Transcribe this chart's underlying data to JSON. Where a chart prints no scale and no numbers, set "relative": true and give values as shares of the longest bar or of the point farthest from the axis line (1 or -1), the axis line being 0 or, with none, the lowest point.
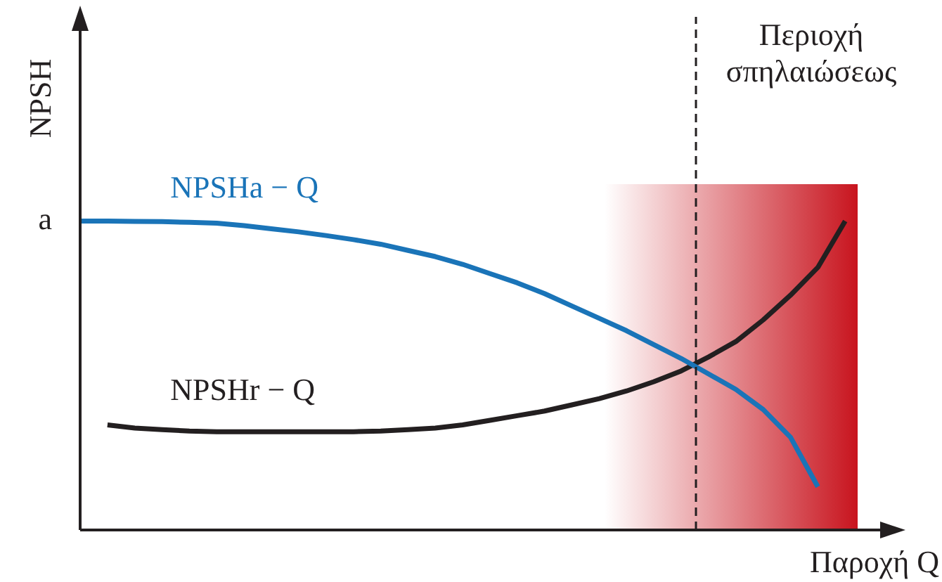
{
  "chart_data": {
    "type": "line",
    "relative": true,
    "xlabel": "Παροχή Q",
    "ylabel": "NPSH",
    "categories": [
      null,
      null,
      null,
      null,
      null,
      null,
      null,
      null,
      null,
      null,
      null,
      null,
      null,
      null,
      null,
      null,
      null,
      null,
      null,
      null,
      null,
      null,
      null,
      null,
      null,
      null,
      null,
      null,
      null,
      null,
      null
    ],
    "tick_labels": false,
    "legend": false,
    "marker": "none",
    "line_style": "solid",
    "series": [
      {
        "name": "NPSHa − Q",
        "color": "#1a74b8",
        "values": [
          1.0,
          1.0,
          0.999,
          0.998,
          0.996,
          0.993,
          0.985,
          0.975,
          0.965,
          0.953,
          0.94,
          0.925,
          0.905,
          0.885,
          0.86,
          0.83,
          0.8,
          0.765,
          0.725,
          0.685,
          0.645,
          0.6,
          0.555,
          0.505,
          0.455,
          0.39,
          0.3,
          0.14,
          null,
          null,
          null
        ]
      },
      {
        "name": "NPSHr − Q",
        "color": "#231f20",
        "values": [
          null,
          0.34,
          0.33,
          0.325,
          0.32,
          0.318,
          0.318,
          0.318,
          0.318,
          0.318,
          0.318,
          0.32,
          0.325,
          0.33,
          0.34,
          0.355,
          0.37,
          0.385,
          0.405,
          0.425,
          0.45,
          0.48,
          0.515,
          0.56,
          0.61,
          0.68,
          0.76,
          0.85,
          1.0,
          null,
          null
        ]
      }
    ],
    "annotations": [
      "a",
      "Περιοχή σπηλαιώσεως"
    ]
  }
}
